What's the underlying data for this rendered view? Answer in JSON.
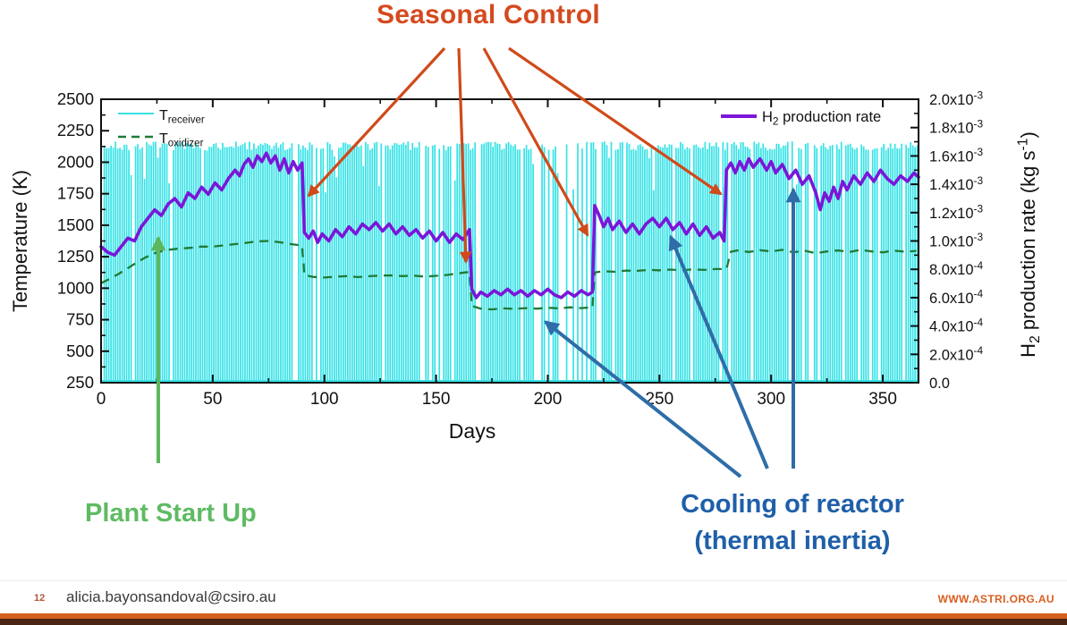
{
  "slide": {
    "title": {
      "text": "Seasonal Control",
      "color": "#D44A1E"
    },
    "annotations": {
      "plant_start_up": {
        "text": "Plant Start Up",
        "color": "#5FBB63"
      },
      "cooling": {
        "line1": "Cooling of reactor",
        "line2": "(thermal inertia)",
        "color": "#1F5FA8"
      }
    },
    "footer": {
      "page_number": "12",
      "page_number_color": "#B5553A",
      "email": "alicia.bayonsandoval@csiro.au",
      "website": "WWW.ASTRI.ORG.AU",
      "website_color": "#D95E1E",
      "bar_orange": "#D6601E",
      "bar_dark": "#4A2513"
    }
  },
  "arrows": {
    "orange": {
      "color": "#D04A1A",
      "width": 3.2,
      "lines": [
        [
          497,
          54,
          345,
          219
        ],
        [
          513,
          54,
          521,
          293
        ],
        [
          541,
          54,
          657,
          263
        ],
        [
          569,
          54,
          806,
          217
        ]
      ]
    },
    "green": {
      "color": "#5CB85C",
      "width": 4,
      "lines": [
        [
          177,
          518,
          177,
          266
        ]
      ]
    },
    "blue": {
      "color": "#2E6DA8",
      "width": 4,
      "lines": [
        [
          828,
          533,
          610,
          360
        ],
        [
          858,
          524,
          750,
          265
        ],
        [
          887,
          524,
          887,
          212
        ]
      ]
    }
  },
  "chart_data": {
    "type": "line",
    "title": "",
    "xlabel": "Days",
    "ylabel_left": "Temperature (K)",
    "ylabel_right": "H_2 production rate (kg s^-1)",
    "xlim": [
      0,
      366
    ],
    "x_ticks": [
      0,
      50,
      100,
      150,
      200,
      250,
      300,
      350
    ],
    "x_minor_step": 25,
    "ylim_left": [
      250,
      2500
    ],
    "y_ticks_left": [
      250,
      500,
      750,
      1000,
      1250,
      1500,
      1750,
      2000,
      2250,
      2500
    ],
    "y_minor_left_step": 125,
    "ylim_right": [
      0,
      0.002
    ],
    "y_ticks_right": [
      {
        "v": 0.0,
        "label": "0.0"
      },
      {
        "v": 0.0002,
        "label": "2.0x10^-4"
      },
      {
        "v": 0.0004,
        "label": "4.0x10^-4"
      },
      {
        "v": 0.0006,
        "label": "6.0x10^-4"
      },
      {
        "v": 0.0008,
        "label": "8.0x10^-4"
      },
      {
        "v": 0.001,
        "label": "1.0x10^-3"
      },
      {
        "v": 0.0012,
        "label": "1.2x10^-3"
      },
      {
        "v": 0.0014,
        "label": "1.4x10^-3"
      },
      {
        "v": 0.0016,
        "label": "1.6x10^-3"
      },
      {
        "v": 0.0018,
        "label": "1.8x10^-3"
      },
      {
        "v": 0.002,
        "label": "2.0x10^-3"
      }
    ],
    "y_minor_right_step": 0.0001,
    "legend_left": [
      {
        "label": "T_receiver",
        "color": "#36E2E6",
        "dash": "solid"
      },
      {
        "label": "T_oxidizer",
        "color": "#1F7A33",
        "dash": "dashed"
      }
    ],
    "legend_right": {
      "label": "H_2 production rate",
      "color": "#7A16D8"
    },
    "series": [
      {
        "name": "T_receiver",
        "style": "daily_bars",
        "axis": "left",
        "color": "#36E2E6",
        "night_K": 250,
        "day_peak_K": 2130,
        "peak_jitter_K": 70,
        "low_peak_fraction": 0.08,
        "gap_base": 0.1,
        "gap_clusters": [
          [
            143,
            152,
            0.3
          ],
          [
            188,
            216,
            0.42
          ],
          [
            308,
            321,
            0.33
          ],
          [
            355,
            362,
            0.22
          ]
        ],
        "seed": 7
      },
      {
        "name": "T_oxidizer",
        "style": "dashed_line",
        "axis": "left",
        "color": "#1F7A33",
        "points": [
          [
            0,
            1040
          ],
          [
            4,
            1075
          ],
          [
            8,
            1115
          ],
          [
            12,
            1160
          ],
          [
            16,
            1205
          ],
          [
            20,
            1245
          ],
          [
            25,
            1285
          ],
          [
            30,
            1305
          ],
          [
            35,
            1315
          ],
          [
            40,
            1320
          ],
          [
            45,
            1330
          ],
          [
            50,
            1330
          ],
          [
            55,
            1340
          ],
          [
            60,
            1350
          ],
          [
            65,
            1360
          ],
          [
            70,
            1372
          ],
          [
            75,
            1375
          ],
          [
            80,
            1365
          ],
          [
            85,
            1350
          ],
          [
            90,
            1338
          ],
          [
            91,
            1105
          ],
          [
            95,
            1090
          ],
          [
            100,
            1085
          ],
          [
            105,
            1092
          ],
          [
            110,
            1096
          ],
          [
            115,
            1088
          ],
          [
            120,
            1095
          ],
          [
            125,
            1100
          ],
          [
            130,
            1102
          ],
          [
            135,
            1096
          ],
          [
            140,
            1100
          ],
          [
            145,
            1092
          ],
          [
            150,
            1098
          ],
          [
            155,
            1105
          ],
          [
            160,
            1118
          ],
          [
            163,
            1125
          ],
          [
            165,
            1128
          ],
          [
            166,
            860
          ],
          [
            170,
            838
          ],
          [
            175,
            832
          ],
          [
            180,
            840
          ],
          [
            185,
            836
          ],
          [
            190,
            842
          ],
          [
            195,
            838
          ],
          [
            200,
            845
          ],
          [
            205,
            840
          ],
          [
            210,
            848
          ],
          [
            215,
            842
          ],
          [
            218,
            846
          ],
          [
            220,
            844
          ],
          [
            221,
            1125
          ],
          [
            225,
            1135
          ],
          [
            230,
            1130
          ],
          [
            235,
            1140
          ],
          [
            240,
            1138
          ],
          [
            245,
            1145
          ],
          [
            250,
            1142
          ],
          [
            255,
            1148
          ],
          [
            260,
            1142
          ],
          [
            265,
            1150
          ],
          [
            270,
            1145
          ],
          [
            275,
            1152
          ],
          [
            280,
            1152
          ],
          [
            282,
            1290
          ],
          [
            285,
            1300
          ],
          [
            290,
            1288
          ],
          [
            295,
            1302
          ],
          [
            300,
            1292
          ],
          [
            305,
            1305
          ],
          [
            310,
            1285
          ],
          [
            315,
            1298
          ],
          [
            320,
            1278
          ],
          [
            325,
            1292
          ],
          [
            330,
            1300
          ],
          [
            335,
            1288
          ],
          [
            340,
            1305
          ],
          [
            345,
            1292
          ],
          [
            350,
            1285
          ],
          [
            355,
            1298
          ],
          [
            360,
            1290
          ],
          [
            365,
            1296
          ]
        ]
      },
      {
        "name": "H2 production rate",
        "style": "line",
        "axis": "right",
        "color": "#7A16D8",
        "points": [
          [
            0,
            0.00096
          ],
          [
            3,
            0.00092
          ],
          [
            6,
            0.0009
          ],
          [
            9,
            0.00096
          ],
          [
            12,
            0.00102
          ],
          [
            15,
            0.001
          ],
          [
            18,
            0.0011
          ],
          [
            21,
            0.00116
          ],
          [
            24,
            0.00122
          ],
          [
            27,
            0.00118
          ],
          [
            30,
            0.00126
          ],
          [
            33,
            0.0013
          ],
          [
            36,
            0.00124
          ],
          [
            39,
            0.00134
          ],
          [
            42,
            0.0013
          ],
          [
            45,
            0.00138
          ],
          [
            48,
            0.00133
          ],
          [
            51,
            0.00141
          ],
          [
            54,
            0.00136
          ],
          [
            57,
            0.00144
          ],
          [
            60,
            0.0015
          ],
          [
            62,
            0.00146
          ],
          [
            64,
            0.00154
          ],
          [
            66,
            0.00158
          ],
          [
            68,
            0.00152
          ],
          [
            70,
            0.0016
          ],
          [
            72,
            0.00156
          ],
          [
            74,
            0.00162
          ],
          [
            76,
            0.00155
          ],
          [
            78,
            0.0016
          ],
          [
            80,
            0.0015
          ],
          [
            82,
            0.00158
          ],
          [
            84,
            0.00148
          ],
          [
            86,
            0.00156
          ],
          [
            88,
            0.0015
          ],
          [
            90,
            0.00155
          ],
          [
            91,
            0.00106
          ],
          [
            93,
            0.00102
          ],
          [
            95,
            0.00107
          ],
          [
            97,
            0.00099
          ],
          [
            99,
            0.00105
          ],
          [
            102,
            0.001
          ],
          [
            105,
            0.00108
          ],
          [
            108,
            0.00103
          ],
          [
            111,
            0.0011
          ],
          [
            114,
            0.00105
          ],
          [
            117,
            0.00112
          ],
          [
            120,
            0.00108
          ],
          [
            123,
            0.00113
          ],
          [
            126,
            0.00107
          ],
          [
            129,
            0.00112
          ],
          [
            132,
            0.00105
          ],
          [
            135,
            0.0011
          ],
          [
            138,
            0.00104
          ],
          [
            141,
            0.00108
          ],
          [
            144,
            0.00102
          ],
          [
            147,
            0.00107
          ],
          [
            150,
            0.001
          ],
          [
            153,
            0.00106
          ],
          [
            156,
            0.00099
          ],
          [
            159,
            0.00105
          ],
          [
            162,
            0.00101
          ],
          [
            165,
            0.00108
          ],
          [
            166,
            0.00066
          ],
          [
            168,
            0.0006
          ],
          [
            170,
            0.00064
          ],
          [
            173,
            0.00061
          ],
          [
            176,
            0.00065
          ],
          [
            179,
            0.00062
          ],
          [
            182,
            0.00066
          ],
          [
            185,
            0.00062
          ],
          [
            188,
            0.00065
          ],
          [
            191,
            0.00061
          ],
          [
            194,
            0.00065
          ],
          [
            197,
            0.00062
          ],
          [
            200,
            0.00066
          ],
          [
            203,
            0.00062
          ],
          [
            206,
            0.0006
          ],
          [
            209,
            0.00064
          ],
          [
            212,
            0.00061
          ],
          [
            215,
            0.00065
          ],
          [
            218,
            0.00062
          ],
          [
            220,
            0.00064
          ],
          [
            221,
            0.00125
          ],
          [
            223,
            0.00118
          ],
          [
            225,
            0.0011
          ],
          [
            227,
            0.00116
          ],
          [
            229,
            0.00108
          ],
          [
            232,
            0.00114
          ],
          [
            235,
            0.00106
          ],
          [
            238,
            0.00112
          ],
          [
            241,
            0.00105
          ],
          [
            244,
            0.00112
          ],
          [
            247,
            0.00116
          ],
          [
            250,
            0.0011
          ],
          [
            253,
            0.00116
          ],
          [
            256,
            0.00108
          ],
          [
            259,
            0.00113
          ],
          [
            262,
            0.00105
          ],
          [
            265,
            0.00112
          ],
          [
            268,
            0.00104
          ],
          [
            271,
            0.0011
          ],
          [
            274,
            0.00102
          ],
          [
            277,
            0.00106
          ],
          [
            279,
            0.001
          ],
          [
            280,
            0.0015
          ],
          [
            282,
            0.00155
          ],
          [
            284,
            0.00148
          ],
          [
            286,
            0.00156
          ],
          [
            288,
            0.0015
          ],
          [
            290,
            0.00158
          ],
          [
            292,
            0.00152
          ],
          [
            295,
            0.00158
          ],
          [
            298,
            0.0015
          ],
          [
            300,
            0.00156
          ],
          [
            302,
            0.00148
          ],
          [
            305,
            0.00154
          ],
          [
            308,
            0.00144
          ],
          [
            311,
            0.0015
          ],
          [
            314,
            0.0014
          ],
          [
            317,
            0.00146
          ],
          [
            320,
            0.00134
          ],
          [
            322,
            0.00122
          ],
          [
            324,
            0.00134
          ],
          [
            326,
            0.00128
          ],
          [
            328,
            0.00138
          ],
          [
            330,
            0.0013
          ],
          [
            332,
            0.00142
          ],
          [
            334,
            0.00136
          ],
          [
            337,
            0.00146
          ],
          [
            340,
            0.0014
          ],
          [
            343,
            0.00148
          ],
          [
            346,
            0.00142
          ],
          [
            349,
            0.0015
          ],
          [
            352,
            0.00144
          ],
          [
            355,
            0.0014
          ],
          [
            358,
            0.00146
          ],
          [
            361,
            0.00142
          ],
          [
            364,
            0.00148
          ],
          [
            366,
            0.00145
          ]
        ]
      }
    ]
  }
}
